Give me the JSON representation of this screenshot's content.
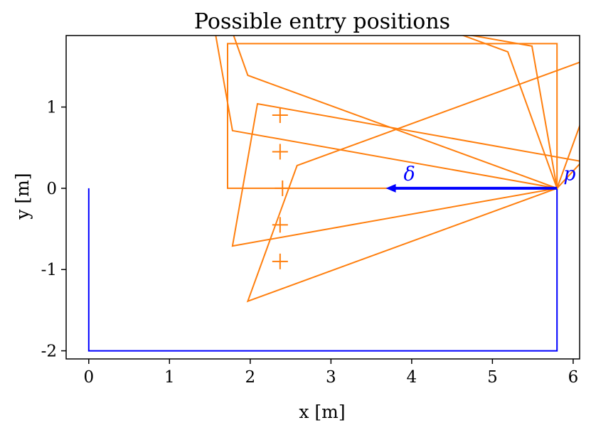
{
  "chart_data": {
    "type": "line",
    "title": "Possible entry positions",
    "xlabel": "x [m]",
    "ylabel": "y [m]",
    "xlim": [
      -0.28,
      6.08
    ],
    "ylim": [
      -2.1,
      1.88
    ],
    "x_ticks": [
      0,
      1,
      2,
      3,
      4,
      5,
      6
    ],
    "y_ticks": [
      -2,
      -1,
      0,
      1
    ],
    "x_tick_labels": [
      "0",
      "1",
      "2",
      "3",
      "4",
      "5",
      "6"
    ],
    "y_tick_labels": [
      "-2",
      "-1",
      "0",
      "1"
    ],
    "grid": false,
    "legend": "none",
    "colors": {
      "boundary": "#0000ff",
      "entries": "#ff7f0e",
      "arrow": "#0000ff"
    },
    "boundary": {
      "points": [
        [
          0,
          0
        ],
        [
          0,
          -2
        ],
        [
          5.8,
          -2
        ],
        [
          5.8,
          0
        ]
      ]
    },
    "entries": [
      {
        "angle_deg": 0,
        "rect": [
          [
            5.8,
            0
          ],
          [
            1.72,
            0
          ],
          [
            1.72,
            1.78
          ],
          [
            5.8,
            1.78
          ]
        ],
        "center": [
          2.4,
          0.0
        ]
      },
      {
        "angle_deg": 10,
        "rect": [
          [
            5.8,
            0
          ],
          [
            1.78,
            0.71
          ],
          [
            1.47,
            2.46
          ],
          [
            5.49,
            1.75
          ]
        ],
        "center": [
          2.37,
          0.45
        ]
      },
      {
        "angle_deg": -10,
        "rect": [
          [
            5.8,
            0
          ],
          [
            1.78,
            -0.71
          ],
          [
            2.09,
            1.04
          ],
          [
            6.11,
            0.33
          ]
        ],
        "center": [
          2.37,
          -0.45
        ]
      },
      {
        "angle_deg": 20,
        "rect": [
          [
            5.8,
            0
          ],
          [
            1.97,
            1.39
          ],
          [
            1.37,
            3.07
          ],
          [
            5.19,
            1.68
          ]
        ],
        "center": [
          2.37,
          0.9
        ]
      },
      {
        "angle_deg": -20,
        "rect": [
          [
            5.8,
            0
          ],
          [
            1.97,
            -1.39
          ],
          [
            2.58,
            0.28
          ],
          [
            6.41,
            1.67
          ]
        ],
        "center": [
          2.37,
          -0.9
        ]
      }
    ],
    "annotations": [
      {
        "text": "δ",
        "x": 3.9,
        "y": 0.1
      },
      {
        "text": "p",
        "x": 5.88,
        "y": 0.1
      }
    ],
    "arrow": {
      "from": [
        5.8,
        0
      ],
      "to": [
        3.68,
        0
      ]
    }
  }
}
